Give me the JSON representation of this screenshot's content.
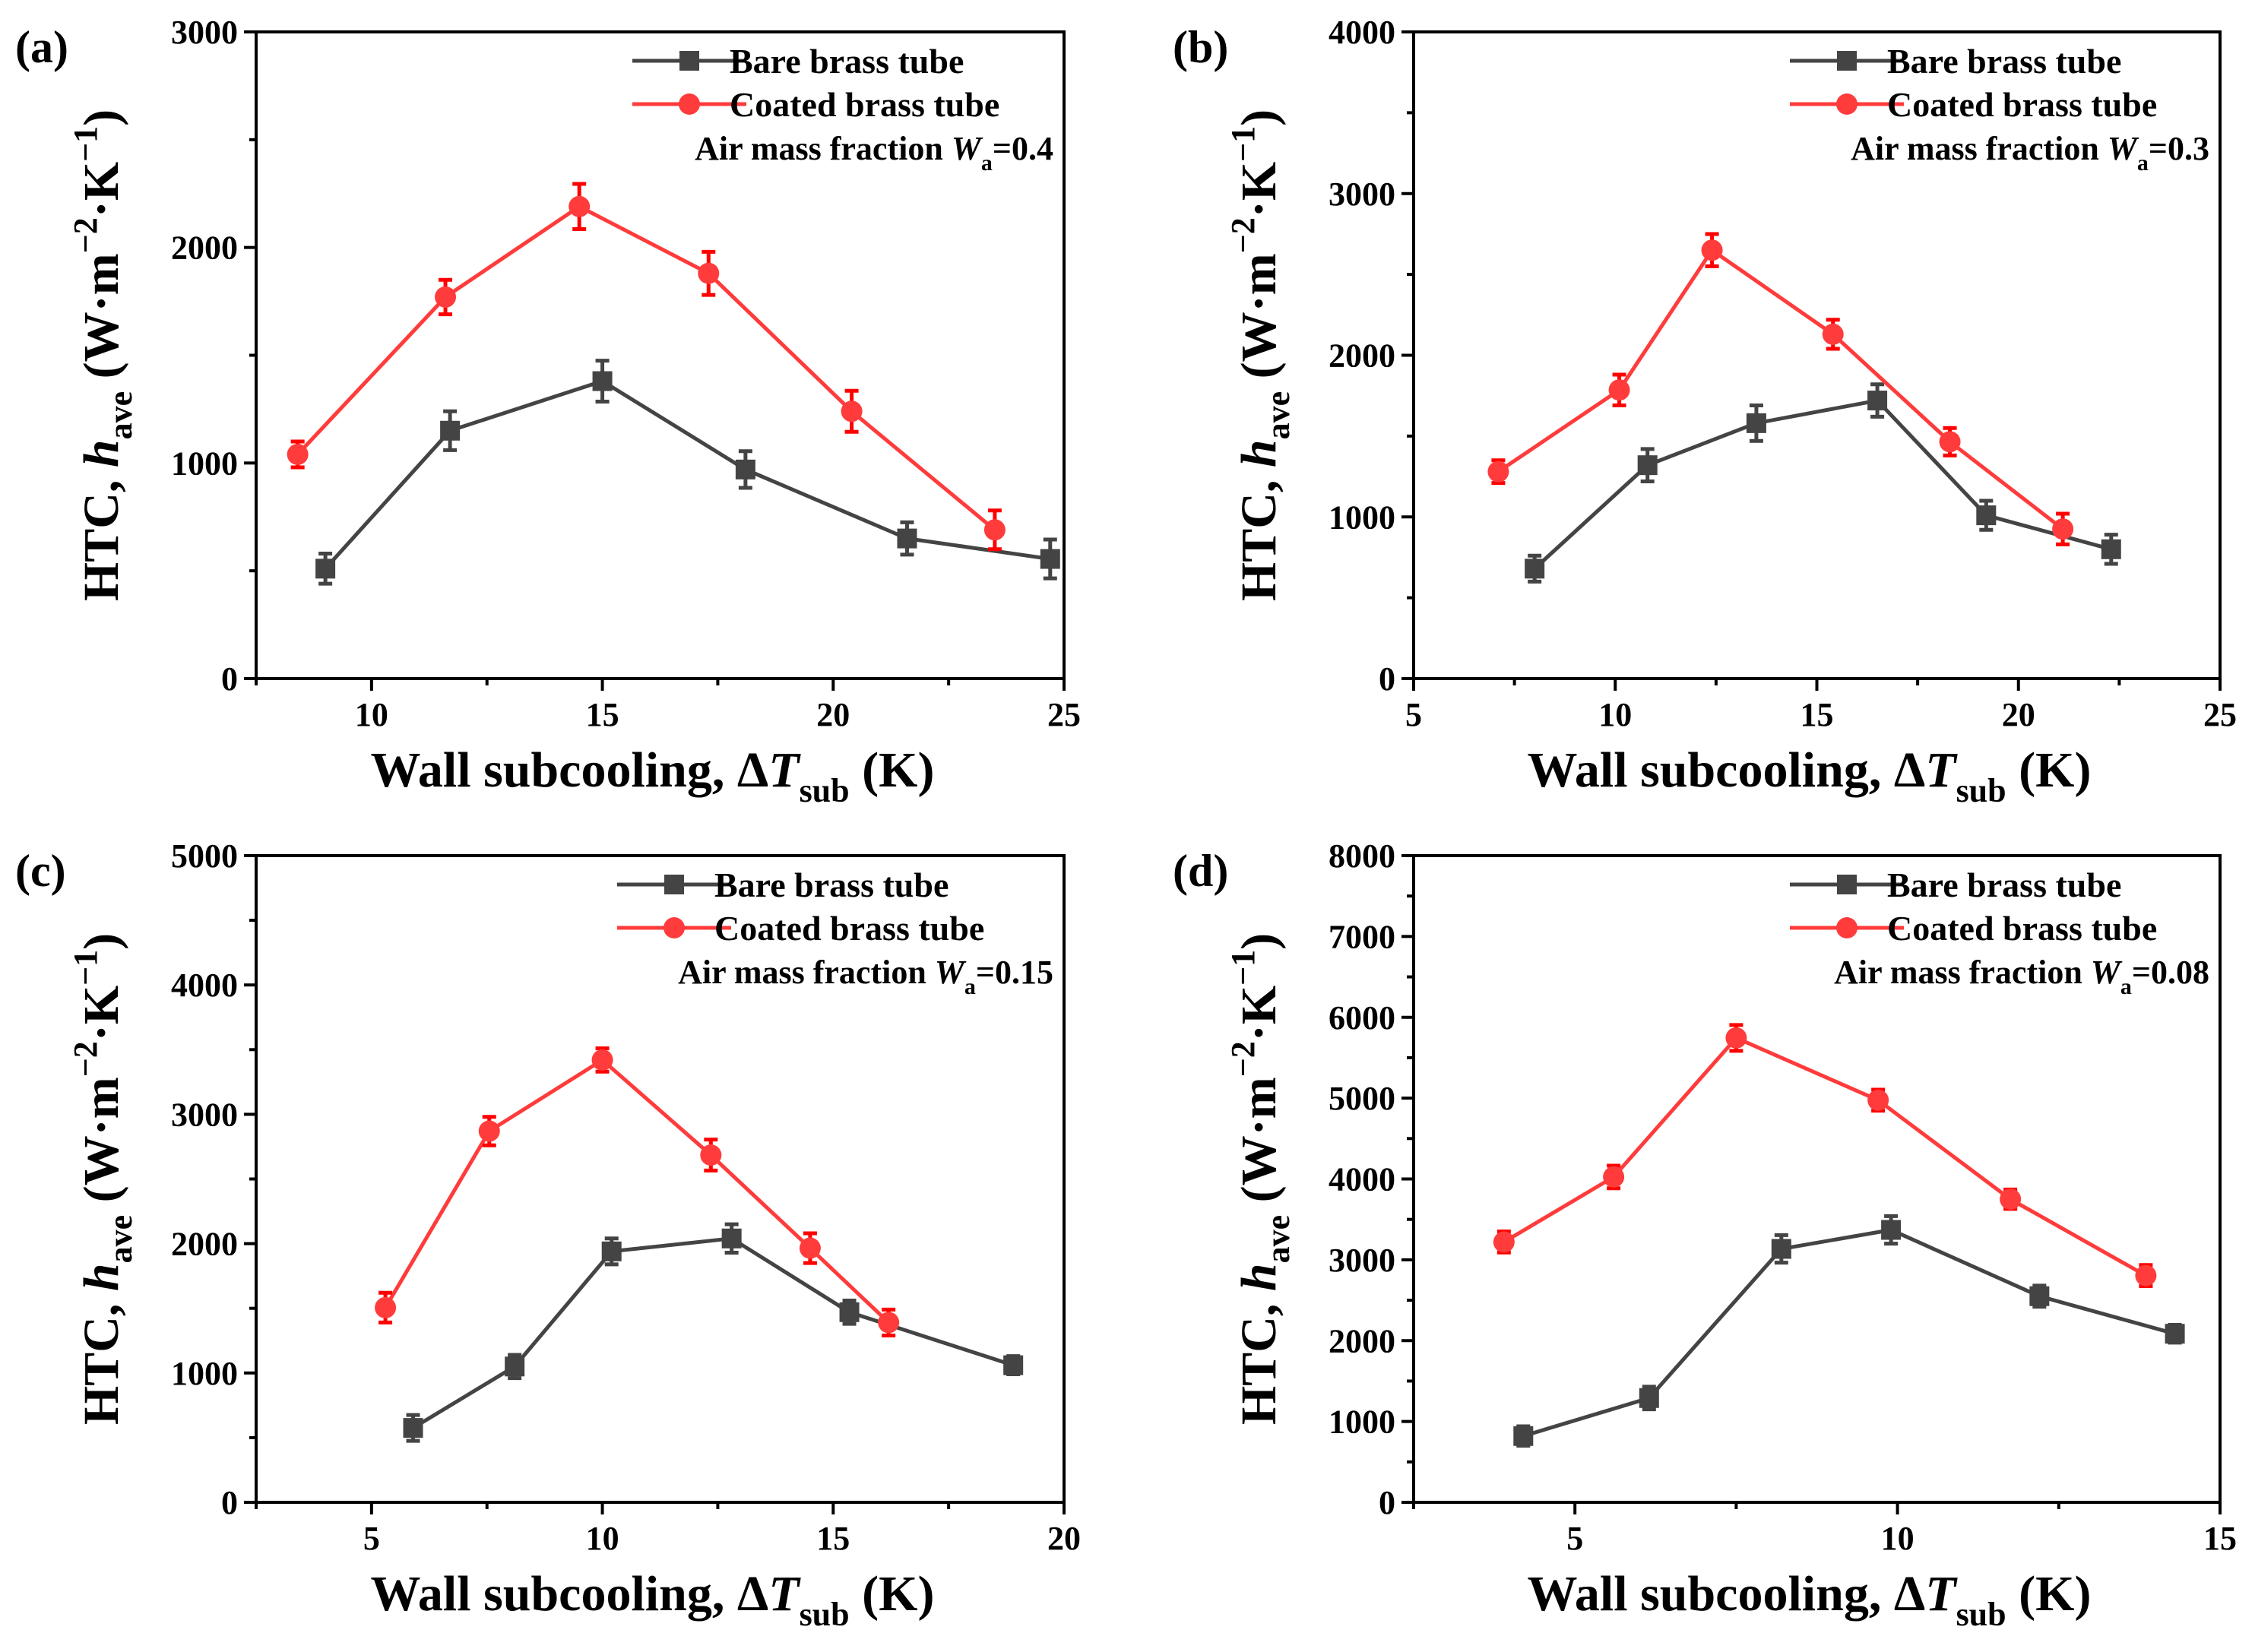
{
  "colors": {
    "bare": "#444444",
    "coated": "#ff3b3b",
    "coated_err": "#ff0000",
    "axis": "#000000"
  },
  "chart_data": [
    {
      "panel_label": "(a)",
      "type": "line",
      "xlim": [
        7.5,
        25
      ],
      "xticks": [
        10,
        15,
        20,
        25
      ],
      "ylim": [
        0,
        3000
      ],
      "yticks": [
        0,
        1000,
        2000,
        3000
      ],
      "xlabel": {
        "prefix": "Wall subcooling, Δ",
        "var": "T",
        "sub": "sub",
        "suffix": " (K)"
      },
      "ylabel": {
        "prefix": "HTC, ",
        "var": "h",
        "sub": "ave",
        "unit": " (W·m",
        "sup1": "−2",
        "mid": "·K",
        "sup2": "−1",
        "end": ")"
      },
      "annotation": {
        "prefix": "Air mass fraction  ",
        "var": "W",
        "sub": "a",
        "value": "=0.4"
      },
      "series": [
        {
          "name": "Bare brass tube",
          "marker": "square",
          "x": [
            9.0,
            11.7,
            15.0,
            18.1,
            21.6,
            24.7
          ],
          "y": [
            510,
            1150,
            1380,
            970,
            650,
            555
          ],
          "err": [
            70,
            90,
            95,
            85,
            75,
            90
          ]
        },
        {
          "name": "Coated brass tube",
          "marker": "circle",
          "x": [
            8.4,
            11.6,
            14.5,
            17.3,
            20.4,
            23.5
          ],
          "y": [
            1040,
            1770,
            2190,
            1880,
            1240,
            690
          ],
          "err": [
            60,
            80,
            105,
            100,
            95,
            90
          ]
        }
      ]
    },
    {
      "panel_label": "(b)",
      "type": "line",
      "xlim": [
        5,
        25
      ],
      "xticks": [
        5,
        10,
        15,
        20,
        25
      ],
      "ylim": [
        0,
        4000
      ],
      "yticks": [
        0,
        1000,
        2000,
        3000,
        4000
      ],
      "xlabel": {
        "prefix": "Wall subcooling, Δ",
        "var": "T",
        "sub": "sub",
        "suffix": " (K)"
      },
      "ylabel": {
        "prefix": "HTC, ",
        "var": "h",
        "sub": "ave",
        "unit": " (W·m",
        "sup1": "−2",
        "mid": "·K",
        "sup2": "−1",
        "end": ")"
      },
      "annotation": {
        "prefix": "Air mass fraction  ",
        "var": "W",
        "sub": "a",
        "value": "=0.3"
      },
      "series": [
        {
          "name": "Bare brass tube",
          "marker": "square",
          "x": [
            8.0,
            10.8,
            13.5,
            16.5,
            19.2,
            22.3
          ],
          "y": [
            680,
            1320,
            1580,
            1720,
            1010,
            800
          ],
          "err": [
            80,
            100,
            110,
            100,
            90,
            90
          ]
        },
        {
          "name": "Coated brass tube",
          "marker": "circle",
          "x": [
            7.1,
            10.1,
            12.4,
            15.4,
            18.3,
            21.1
          ],
          "y": [
            1280,
            1785,
            2650,
            2130,
            1465,
            925
          ],
          "err": [
            70,
            95,
            100,
            90,
            85,
            95
          ]
        }
      ]
    },
    {
      "panel_label": "(c)",
      "type": "line",
      "xlim": [
        2.5,
        20
      ],
      "xticks": [
        5,
        10,
        15,
        20
      ],
      "ylim": [
        0,
        5000
      ],
      "yticks": [
        0,
        1000,
        2000,
        3000,
        4000,
        5000
      ],
      "xlabel": {
        "prefix": "Wall subcooling, Δ",
        "var": "T",
        "sub": "sub",
        "suffix": " (K)"
      },
      "ylabel": {
        "prefix": "HTC, ",
        "var": "h",
        "sub": "ave",
        "unit": " (W·m",
        "sup1": "−2",
        "mid": "·K",
        "sup2": "−1",
        "end": ")"
      },
      "annotation": {
        "prefix": "Air mass fraction  ",
        "var": "W",
        "sub": "a",
        "value": "=0.15"
      },
      "series": [
        {
          "name": "Bare brass tube",
          "marker": "square",
          "x": [
            5.9,
            8.1,
            10.2,
            12.8,
            15.35,
            18.9
          ],
          "y": [
            575,
            1050,
            1940,
            2040,
            1470,
            1060
          ],
          "err": [
            100,
            90,
            100,
            110,
            90,
            70
          ]
        },
        {
          "name": "Coated brass tube",
          "marker": "circle",
          "x": [
            5.3,
            7.55,
            10.0,
            12.35,
            14.5,
            16.2
          ],
          "y": [
            1505,
            2870,
            3420,
            2685,
            1965,
            1390
          ],
          "err": [
            115,
            110,
            90,
            120,
            115,
            100
          ]
        }
      ]
    },
    {
      "panel_label": "(d)",
      "type": "line",
      "xlim": [
        2.5,
        15
      ],
      "xticks": [
        5,
        10,
        15
      ],
      "ylim": [
        0,
        8000
      ],
      "yticks": [
        0,
        1000,
        2000,
        3000,
        4000,
        5000,
        6000,
        7000,
        8000
      ],
      "xlabel": {
        "prefix": "Wall subcooling, Δ",
        "var": "T",
        "sub": "sub",
        "suffix": " (K)"
      },
      "ylabel": {
        "prefix": "HTC, ",
        "var": "h",
        "sub": "ave",
        "unit": " (W·m",
        "sup1": "−2",
        "mid": "·K",
        "sup2": "−1",
        "end": ")"
      },
      "annotation": {
        "prefix": "Air mass fraction  ",
        "var": "W",
        "sub": "a",
        "value": "=0.08"
      },
      "series": [
        {
          "name": "Bare brass tube",
          "marker": "square",
          "x": [
            4.2,
            6.15,
            8.2,
            9.9,
            12.2,
            14.3
          ],
          "y": [
            820,
            1290,
            3135,
            3370,
            2550,
            2085
          ],
          "err": [
            120,
            140,
            170,
            170,
            130,
            110
          ]
        },
        {
          "name": "Coated brass tube",
          "marker": "circle",
          "x": [
            3.9,
            5.6,
            7.5,
            9.7,
            11.75,
            13.85
          ],
          "y": [
            3220,
            4025,
            5745,
            4975,
            3750,
            2805
          ],
          "err": [
            130,
            140,
            160,
            130,
            120,
            130
          ]
        }
      ]
    }
  ]
}
